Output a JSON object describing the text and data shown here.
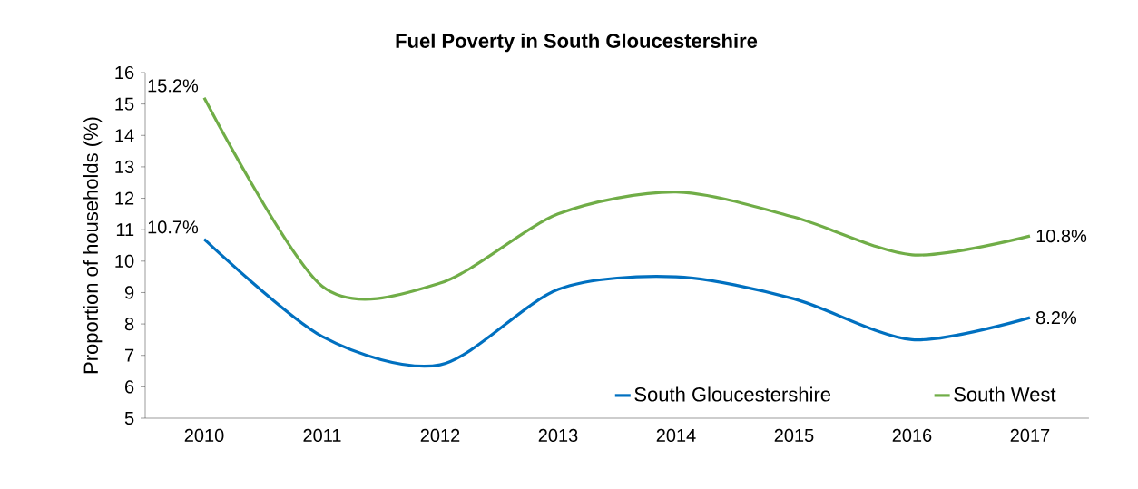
{
  "chart_data": {
    "type": "line",
    "title": "Fuel Poverty in South Gloucestershire",
    "ylabel": "Proportion of households (%)",
    "categories": [
      "2010",
      "2011",
      "2012",
      "2013",
      "2014",
      "2015",
      "2016",
      "2017"
    ],
    "series": [
      {
        "name": "South Gloucestershire",
        "color": "#0070c0",
        "values": [
          10.7,
          7.6,
          6.7,
          9.1,
          9.5,
          8.8,
          7.5,
          8.2
        ],
        "value_labels": [
          "10.7%",
          null,
          null,
          null,
          null,
          null,
          null,
          "8.2%"
        ]
      },
      {
        "name": "South West",
        "color": "#70ad47",
        "values": [
          15.2,
          9.2,
          9.3,
          11.5,
          12.2,
          11.4,
          10.2,
          10.8
        ],
        "value_labels": [
          "15.2%",
          null,
          null,
          null,
          null,
          null,
          null,
          "10.8%"
        ]
      }
    ],
    "ylim": [
      5,
      16
    ],
    "yticks": [
      5,
      6,
      7,
      8,
      9,
      10,
      11,
      12,
      13,
      14,
      15,
      16
    ],
    "grid": false,
    "legend": "bottom right",
    "marker": "none",
    "line_style": "solid"
  }
}
